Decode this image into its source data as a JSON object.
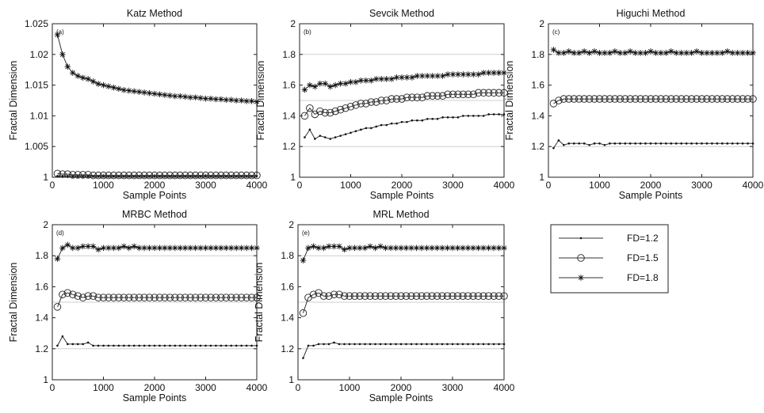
{
  "legend": {
    "items": [
      {
        "label": "FD=1.2",
        "marker": "dot"
      },
      {
        "label": "FD=1.5",
        "marker": "circle"
      },
      {
        "label": "FD=1.8",
        "marker": "star"
      }
    ]
  },
  "chart_data": [
    {
      "type": "line",
      "title": "Katz Method",
      "panel_tag": "(a)",
      "xlabel": "Sample Points",
      "ylabel": "Fractal Dimension",
      "xlim": [
        0,
        4000
      ],
      "ylim": [
        1,
        1.025
      ],
      "xticks": [
        0,
        1000,
        2000,
        3000,
        4000
      ],
      "yticks": [
        1,
        1.005,
        1.01,
        1.015,
        1.02,
        1.025
      ],
      "yticklabels": [
        "1",
        "1.005",
        "1.01",
        "1.015",
        "1.02",
        "1.025"
      ],
      "reflines": [],
      "series": [
        {
          "name": "FD=1.2",
          "marker": "dot",
          "x_start": 100,
          "x_step": 100,
          "values": [
            1.0002,
            1.0002,
            1.0002,
            1.0002,
            1.0002,
            1.0002,
            1.0002,
            1.0002,
            1.0002,
            1.0002,
            1.0002,
            1.0002,
            1.0002,
            1.0002,
            1.0002,
            1.0002,
            1.0002,
            1.0002,
            1.0002,
            1.0002,
            1.0002,
            1.0002,
            1.0002,
            1.0002,
            1.0002,
            1.0002,
            1.0002,
            1.0002,
            1.0002,
            1.0002,
            1.0002,
            1.0002,
            1.0002,
            1.0002,
            1.0002,
            1.0002,
            1.0002,
            1.0002,
            1.0002,
            1.0002
          ]
        },
        {
          "name": "FD=1.5",
          "marker": "circle",
          "x_start": 100,
          "x_step": 100,
          "values": [
            1.0006,
            1.0005,
            1.0005,
            1.0004,
            1.0004,
            1.0004,
            1.0004,
            1.0003,
            1.0003,
            1.0003,
            1.0003,
            1.0003,
            1.0003,
            1.0003,
            1.0003,
            1.0003,
            1.0003,
            1.0003,
            1.0003,
            1.0003,
            1.0003,
            1.0003,
            1.0003,
            1.0003,
            1.0003,
            1.0003,
            1.0003,
            1.0003,
            1.0003,
            1.0003,
            1.0003,
            1.0003,
            1.0003,
            1.0003,
            1.0003,
            1.0003,
            1.0003,
            1.0003,
            1.0003,
            1.0003
          ]
        },
        {
          "name": "FD=1.8",
          "marker": "star",
          "x_start": 100,
          "x_step": 100,
          "values": [
            1.0232,
            1.02,
            1.018,
            1.017,
            1.0165,
            1.0162,
            1.016,
            1.0156,
            1.0152,
            1.015,
            1.0148,
            1.0146,
            1.0144,
            1.0142,
            1.0141,
            1.014,
            1.0139,
            1.0138,
            1.0137,
            1.0136,
            1.0135,
            1.0134,
            1.0133,
            1.0132,
            1.0132,
            1.0131,
            1.013,
            1.013,
            1.0129,
            1.0128,
            1.0128,
            1.0127,
            1.0127,
            1.0126,
            1.0126,
            1.0125,
            1.0125,
            1.0124,
            1.0124,
            1.0123
          ]
        }
      ]
    },
    {
      "type": "line",
      "title": "Sevcik Method",
      "panel_tag": "(b)",
      "xlabel": "Sample Points",
      "ylabel": "Fractal Dimension",
      "xlim": [
        0,
        4000
      ],
      "ylim": [
        1,
        2
      ],
      "xticks": [
        0,
        1000,
        2000,
        3000,
        4000
      ],
      "yticks": [
        1,
        1.2,
        1.4,
        1.6,
        1.8,
        2
      ],
      "yticklabels": [
        "1",
        "1.2",
        "1.4",
        "1.6",
        "1.8",
        "2"
      ],
      "reflines": [
        1.2,
        1.5,
        1.8
      ],
      "series": [
        {
          "name": "FD=1.2",
          "marker": "dot",
          "x_start": 100,
          "x_step": 100,
          "values": [
            1.26,
            1.31,
            1.25,
            1.27,
            1.26,
            1.25,
            1.26,
            1.27,
            1.28,
            1.29,
            1.3,
            1.31,
            1.32,
            1.32,
            1.33,
            1.34,
            1.34,
            1.35,
            1.35,
            1.36,
            1.36,
            1.37,
            1.37,
            1.37,
            1.38,
            1.38,
            1.38,
            1.39,
            1.39,
            1.39,
            1.39,
            1.4,
            1.4,
            1.4,
            1.4,
            1.4,
            1.41,
            1.41,
            1.41,
            1.41
          ]
        },
        {
          "name": "FD=1.5",
          "marker": "circle",
          "x_start": 100,
          "x_step": 100,
          "values": [
            1.4,
            1.45,
            1.41,
            1.43,
            1.42,
            1.42,
            1.43,
            1.44,
            1.45,
            1.46,
            1.47,
            1.48,
            1.48,
            1.49,
            1.49,
            1.5,
            1.5,
            1.51,
            1.51,
            1.51,
            1.52,
            1.52,
            1.52,
            1.52,
            1.53,
            1.53,
            1.53,
            1.53,
            1.54,
            1.54,
            1.54,
            1.54,
            1.54,
            1.54,
            1.55,
            1.55,
            1.55,
            1.55,
            1.55,
            1.55
          ]
        },
        {
          "name": "FD=1.8",
          "marker": "star",
          "x_start": 100,
          "x_step": 100,
          "values": [
            1.57,
            1.6,
            1.59,
            1.61,
            1.61,
            1.59,
            1.6,
            1.61,
            1.61,
            1.62,
            1.62,
            1.63,
            1.63,
            1.63,
            1.64,
            1.64,
            1.64,
            1.64,
            1.65,
            1.65,
            1.65,
            1.65,
            1.66,
            1.66,
            1.66,
            1.66,
            1.66,
            1.66,
            1.67,
            1.67,
            1.67,
            1.67,
            1.67,
            1.67,
            1.67,
            1.68,
            1.68,
            1.68,
            1.68,
            1.68
          ]
        }
      ]
    },
    {
      "type": "line",
      "title": "Higuchi Method",
      "panel_tag": "(c)",
      "xlabel": "Sample Points",
      "ylabel": "Fractal Dimension",
      "xlim": [
        0,
        4000
      ],
      "ylim": [
        1,
        2
      ],
      "xticks": [
        0,
        1000,
        2000,
        3000,
        4000
      ],
      "yticks": [
        1,
        1.2,
        1.4,
        1.6,
        1.8,
        2
      ],
      "yticklabels": [
        "1",
        "1.2",
        "1.4",
        "1.6",
        "1.8",
        "2"
      ],
      "reflines": [
        1.2,
        1.5,
        1.8
      ],
      "series": [
        {
          "name": "FD=1.2",
          "marker": "dot",
          "x_start": 100,
          "x_step": 100,
          "values": [
            1.19,
            1.24,
            1.21,
            1.22,
            1.22,
            1.22,
            1.22,
            1.21,
            1.22,
            1.22,
            1.21,
            1.22,
            1.22,
            1.22,
            1.22,
            1.22,
            1.22,
            1.22,
            1.22,
            1.22,
            1.22,
            1.22,
            1.22,
            1.22,
            1.22,
            1.22,
            1.22,
            1.22,
            1.22,
            1.22,
            1.22,
            1.22,
            1.22,
            1.22,
            1.22,
            1.22,
            1.22,
            1.22,
            1.22,
            1.22
          ]
        },
        {
          "name": "FD=1.5",
          "marker": "circle",
          "x_start": 100,
          "x_step": 100,
          "values": [
            1.48,
            1.5,
            1.51,
            1.51,
            1.51,
            1.51,
            1.51,
            1.51,
            1.51,
            1.51,
            1.51,
            1.51,
            1.51,
            1.51,
            1.51,
            1.51,
            1.51,
            1.51,
            1.51,
            1.51,
            1.51,
            1.51,
            1.51,
            1.51,
            1.51,
            1.51,
            1.51,
            1.51,
            1.51,
            1.51,
            1.51,
            1.51,
            1.51,
            1.51,
            1.51,
            1.51,
            1.51,
            1.51,
            1.51,
            1.51
          ]
        },
        {
          "name": "FD=1.8",
          "marker": "star",
          "x_start": 100,
          "x_step": 100,
          "values": [
            1.83,
            1.81,
            1.81,
            1.82,
            1.81,
            1.81,
            1.82,
            1.81,
            1.82,
            1.81,
            1.81,
            1.81,
            1.82,
            1.81,
            1.81,
            1.82,
            1.81,
            1.81,
            1.81,
            1.82,
            1.81,
            1.81,
            1.81,
            1.82,
            1.81,
            1.81,
            1.81,
            1.81,
            1.82,
            1.81,
            1.81,
            1.81,
            1.81,
            1.81,
            1.82,
            1.81,
            1.81,
            1.81,
            1.81,
            1.81
          ]
        }
      ]
    },
    {
      "type": "line",
      "title": "MRBC Method",
      "panel_tag": "(d)",
      "xlabel": "Sample Points",
      "ylabel": "Fractal Dimension",
      "xlim": [
        0,
        4000
      ],
      "ylim": [
        1,
        2
      ],
      "xticks": [
        0,
        1000,
        2000,
        3000,
        4000
      ],
      "yticks": [
        1,
        1.2,
        1.4,
        1.6,
        1.8,
        2
      ],
      "yticklabels": [
        "1",
        "1.2",
        "1.4",
        "1.6",
        "1.8",
        "2"
      ],
      "reflines": [
        1.2,
        1.5,
        1.8
      ],
      "series": [
        {
          "name": "FD=1.2",
          "marker": "dot",
          "x_start": 100,
          "x_step": 100,
          "values": [
            1.22,
            1.28,
            1.23,
            1.23,
            1.23,
            1.23,
            1.24,
            1.22,
            1.22,
            1.22,
            1.22,
            1.22,
            1.22,
            1.22,
            1.22,
            1.22,
            1.22,
            1.22,
            1.22,
            1.22,
            1.22,
            1.22,
            1.22,
            1.22,
            1.22,
            1.22,
            1.22,
            1.22,
            1.22,
            1.22,
            1.22,
            1.22,
            1.22,
            1.22,
            1.22,
            1.22,
            1.22,
            1.22,
            1.22,
            1.22
          ]
        },
        {
          "name": "FD=1.5",
          "marker": "circle",
          "x_start": 100,
          "x_step": 100,
          "values": [
            1.47,
            1.55,
            1.56,
            1.55,
            1.54,
            1.53,
            1.54,
            1.54,
            1.53,
            1.53,
            1.53,
            1.53,
            1.53,
            1.53,
            1.53,
            1.53,
            1.53,
            1.53,
            1.53,
            1.53,
            1.53,
            1.53,
            1.53,
            1.53,
            1.53,
            1.53,
            1.53,
            1.53,
            1.53,
            1.53,
            1.53,
            1.53,
            1.53,
            1.53,
            1.53,
            1.53,
            1.53,
            1.53,
            1.53,
            1.53
          ]
        },
        {
          "name": "FD=1.8",
          "marker": "star",
          "x_start": 100,
          "x_step": 100,
          "values": [
            1.78,
            1.85,
            1.87,
            1.85,
            1.85,
            1.86,
            1.86,
            1.86,
            1.84,
            1.85,
            1.85,
            1.85,
            1.85,
            1.86,
            1.85,
            1.86,
            1.85,
            1.85,
            1.85,
            1.85,
            1.85,
            1.85,
            1.85,
            1.85,
            1.85,
            1.85,
            1.85,
            1.85,
            1.85,
            1.85,
            1.85,
            1.85,
            1.85,
            1.85,
            1.85,
            1.85,
            1.85,
            1.85,
            1.85,
            1.85
          ]
        }
      ]
    },
    {
      "type": "line",
      "title": "MRL Method",
      "panel_tag": "(e)",
      "xlabel": "Sample Points",
      "ylabel": "Fractal Dimension",
      "xlim": [
        0,
        4000
      ],
      "ylim": [
        1,
        2
      ],
      "xticks": [
        0,
        1000,
        2000,
        3000,
        4000
      ],
      "yticks": [
        1,
        1.2,
        1.4,
        1.6,
        1.8,
        2
      ],
      "yticklabels": [
        "1",
        "1.2",
        "1.4",
        "1.6",
        "1.8",
        "2"
      ],
      "reflines": [
        1.2,
        1.5,
        1.8
      ],
      "series": [
        {
          "name": "FD=1.2",
          "marker": "dot",
          "x_start": 100,
          "x_step": 100,
          "values": [
            1.14,
            1.22,
            1.22,
            1.23,
            1.23,
            1.23,
            1.24,
            1.23,
            1.23,
            1.23,
            1.23,
            1.23,
            1.23,
            1.23,
            1.23,
            1.23,
            1.23,
            1.23,
            1.23,
            1.23,
            1.23,
            1.23,
            1.23,
            1.23,
            1.23,
            1.23,
            1.23,
            1.23,
            1.23,
            1.23,
            1.23,
            1.23,
            1.23,
            1.23,
            1.23,
            1.23,
            1.23,
            1.23,
            1.23,
            1.23
          ]
        },
        {
          "name": "FD=1.5",
          "marker": "circle",
          "x_start": 100,
          "x_step": 100,
          "values": [
            1.43,
            1.53,
            1.55,
            1.56,
            1.54,
            1.54,
            1.55,
            1.55,
            1.54,
            1.54,
            1.54,
            1.54,
            1.54,
            1.54,
            1.54,
            1.54,
            1.54,
            1.54,
            1.54,
            1.54,
            1.54,
            1.54,
            1.54,
            1.54,
            1.54,
            1.54,
            1.54,
            1.54,
            1.54,
            1.54,
            1.54,
            1.54,
            1.54,
            1.54,
            1.54,
            1.54,
            1.54,
            1.54,
            1.54,
            1.54
          ]
        },
        {
          "name": "FD=1.8",
          "marker": "star",
          "x_start": 100,
          "x_step": 100,
          "values": [
            1.77,
            1.85,
            1.86,
            1.85,
            1.85,
            1.86,
            1.86,
            1.86,
            1.84,
            1.85,
            1.85,
            1.85,
            1.85,
            1.86,
            1.85,
            1.86,
            1.85,
            1.85,
            1.85,
            1.85,
            1.85,
            1.85,
            1.85,
            1.85,
            1.85,
            1.85,
            1.85,
            1.85,
            1.85,
            1.85,
            1.85,
            1.85,
            1.85,
            1.85,
            1.85,
            1.85,
            1.85,
            1.85,
            1.85,
            1.85
          ]
        }
      ]
    }
  ]
}
